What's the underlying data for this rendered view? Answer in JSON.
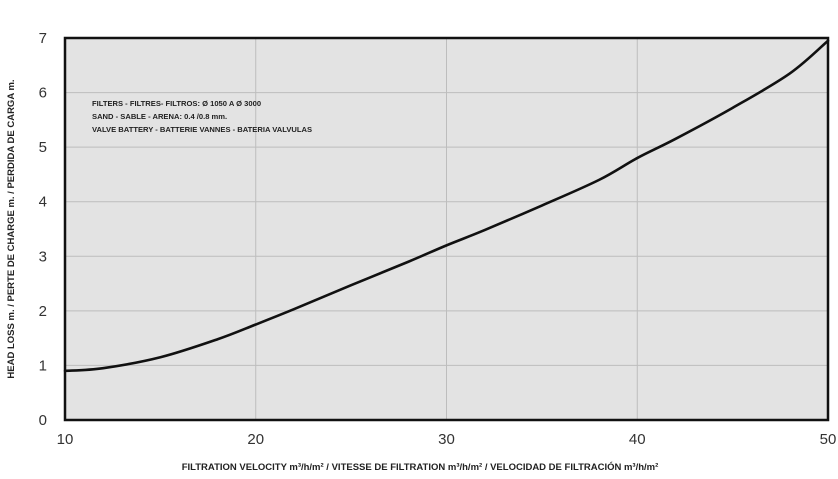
{
  "chart_data": {
    "type": "line",
    "xlabel": "FILTRATION VELOCITY m³/h/m² / VITESSE DE FILTRATION m³/h/m² / VELOCIDAD DE FILTRACIÓN m³/h/m²",
    "ylabel": "HEAD LOSS m. / PERTE DE CHARGE m. / PERDIDA DE CARGA m.",
    "xlim": [
      10,
      50
    ],
    "ylim": [
      0,
      7
    ],
    "x_ticks": [
      "10",
      "20",
      "30",
      "40",
      "50"
    ],
    "y_ticks": [
      "0",
      "1",
      "2",
      "3",
      "4",
      "5",
      "6",
      "7"
    ],
    "grid": true,
    "annotation": [
      "FILTERS - FILTRES-  FILTROS: Ø 1050 A Ø 3000",
      "SAND - SABLE - ARENA: 0.4 /0.8 mm.",
      "VALVE BATTERY - BATTERIE VANNES - BATERIA VALVULAS"
    ],
    "series": [
      {
        "x": [
          10,
          12,
          15,
          18,
          20,
          22,
          25,
          28,
          30,
          32,
          35,
          38,
          40,
          42,
          45,
          48,
          50
        ],
        "values": [
          0.9,
          0.95,
          1.15,
          1.48,
          1.75,
          2.03,
          2.47,
          2.9,
          3.2,
          3.48,
          3.93,
          4.4,
          4.8,
          5.15,
          5.72,
          6.35,
          6.95
        ]
      }
    ],
    "colors": {
      "plot_bg": "#e3e3e3",
      "line": "#111111",
      "grid": "#bdbdbd",
      "frame": "#111111"
    }
  }
}
